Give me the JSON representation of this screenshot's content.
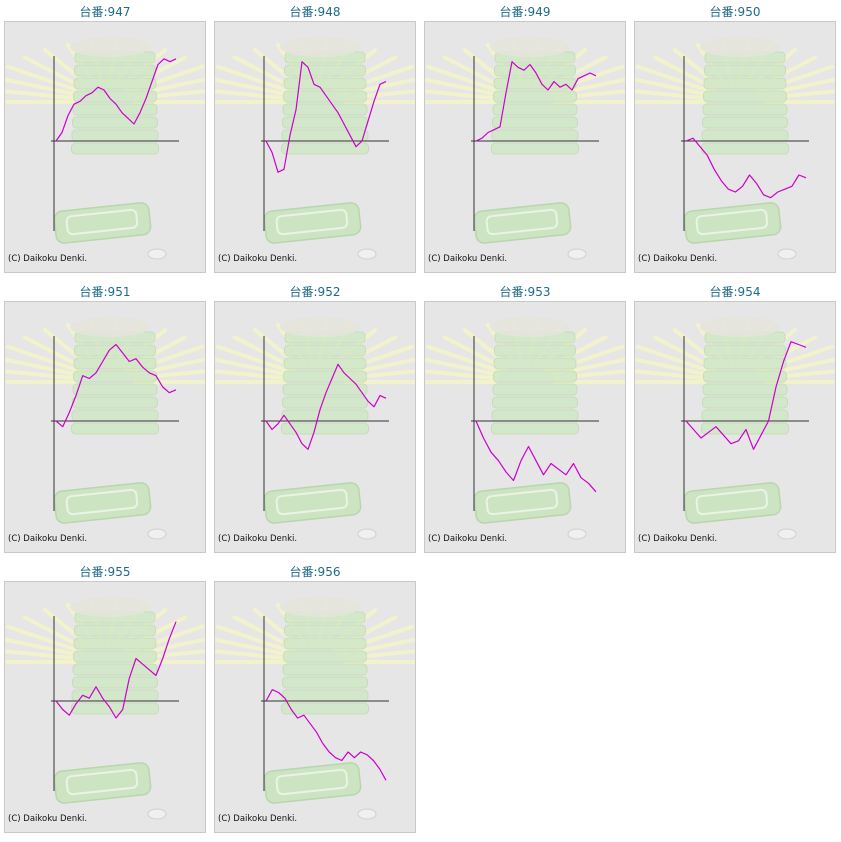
{
  "page": {
    "copyright": "(C) Daikoku Denki."
  },
  "colors": {
    "line": "#cc00cc",
    "axis": "#333333",
    "title": "#1f6a8a",
    "plot_bg": "#e6e6e6"
  },
  "chart_data": [
    {
      "type": "line",
      "title": "台番:947",
      "x": [
        0,
        4,
        8,
        12,
        16,
        20,
        24,
        28,
        32,
        36,
        40,
        44,
        48,
        52,
        56,
        60,
        64,
        68,
        72,
        76,
        80
      ],
      "values": [
        0,
        300,
        900,
        1300,
        1400,
        1600,
        1700,
        1900,
        1800,
        1500,
        1300,
        1000,
        800,
        600,
        1000,
        1500,
        2100,
        2700,
        2900,
        2800,
        2900
      ]
    },
    {
      "type": "line",
      "title": "台番:948",
      "x": [
        0,
        3,
        6,
        9,
        12,
        15,
        18,
        21,
        24,
        27,
        30,
        33,
        36,
        39,
        42,
        45,
        48,
        51,
        54,
        57,
        60
      ],
      "values": [
        0,
        -400,
        -1100,
        -1000,
        200,
        1100,
        2800,
        2600,
        2000,
        1900,
        1600,
        1300,
        1000,
        600,
        200,
        -200,
        0,
        700,
        1400,
        2000,
        2100
      ]
    },
    {
      "type": "line",
      "title": "台番:949",
      "x": [
        0,
        5,
        10,
        15,
        20,
        25,
        30,
        35,
        40,
        45,
        50,
        55,
        60,
        65,
        70,
        75,
        80,
        85,
        90,
        95,
        100
      ],
      "values": [
        0,
        100,
        300,
        400,
        500,
        1700,
        2800,
        2600,
        2500,
        2700,
        2400,
        2000,
        1800,
        2100,
        1900,
        2000,
        1800,
        2200,
        2300,
        2400,
        2300
      ]
    },
    {
      "type": "line",
      "title": "台番:950",
      "x": [
        0,
        5,
        10,
        15,
        20,
        25,
        30,
        35,
        40,
        45,
        50,
        55,
        60,
        65,
        70,
        75,
        80,
        85
      ],
      "values": [
        0,
        100,
        -200,
        -500,
        -1000,
        -1400,
        -1700,
        -1800,
        -1600,
        -1200,
        -1500,
        -1900,
        -2000,
        -1800,
        -1700,
        -1600,
        -1200,
        -1300
      ]
    },
    {
      "type": "line",
      "title": "台番:951",
      "x": [
        0,
        5,
        10,
        15,
        20,
        25,
        30,
        35,
        40,
        45,
        50,
        55,
        60,
        65,
        70,
        75,
        80,
        85,
        90
      ],
      "values": [
        0,
        -200,
        300,
        900,
        1600,
        1500,
        1700,
        2100,
        2500,
        2700,
        2400,
        2100,
        2200,
        1900,
        1700,
        1600,
        1200,
        1000,
        1100
      ]
    },
    {
      "type": "line",
      "title": "台番:952",
      "x": [
        0,
        5,
        10,
        15,
        20,
        25,
        30,
        35,
        40,
        45,
        50,
        55,
        60,
        65,
        70,
        75,
        80,
        85,
        90,
        95,
        100
      ],
      "values": [
        0,
        -300,
        -100,
        200,
        -100,
        -400,
        -800,
        -1000,
        -400,
        400,
        1000,
        1500,
        2000,
        1700,
        1500,
        1300,
        1000,
        700,
        500,
        900,
        800
      ]
    },
    {
      "type": "line",
      "title": "台番:953",
      "x": [
        0,
        5,
        10,
        15,
        20,
        25,
        30,
        35,
        40,
        45,
        50,
        55,
        60,
        65,
        70,
        75,
        80
      ],
      "values": [
        0,
        -600,
        -1100,
        -1400,
        -1800,
        -2100,
        -1400,
        -900,
        -1400,
        -1900,
        -1500,
        -1700,
        -1900,
        -1500,
        -2000,
        -2200,
        -2500
      ]
    },
    {
      "type": "line",
      "title": "台番:954",
      "x": [
        0,
        5,
        10,
        15,
        20,
        25,
        30,
        35,
        40,
        45,
        50,
        55,
        60,
        65,
        70,
        75,
        80
      ],
      "values": [
        0,
        -300,
        -600,
        -400,
        -200,
        -500,
        -800,
        -700,
        -300,
        -1000,
        -500,
        0,
        1200,
        2100,
        2800,
        2700,
        2600
      ]
    },
    {
      "type": "line",
      "title": "台番:955",
      "x": [
        0,
        5,
        10,
        15,
        20,
        25,
        30,
        35,
        40,
        45,
        50,
        55,
        60,
        65,
        70,
        75,
        80,
        85,
        90
      ],
      "values": [
        0,
        -300,
        -500,
        -100,
        200,
        100,
        500,
        100,
        -200,
        -600,
        -300,
        800,
        1500,
        1300,
        1100,
        900,
        1500,
        2200,
        2800
      ]
    },
    {
      "type": "line",
      "title": "台番:956",
      "x": [
        0,
        5,
        10,
        15,
        20,
        25,
        30,
        35,
        40,
        45,
        50,
        55,
        60,
        65,
        70,
        75,
        80,
        85,
        90,
        95
      ],
      "values": [
        0,
        400,
        300,
        100,
        -300,
        -600,
        -500,
        -800,
        -1100,
        -1500,
        -1800,
        -2000,
        -2100,
        -1800,
        -2000,
        -1800,
        -1900,
        -2100,
        -2400,
        -2800
      ]
    }
  ]
}
